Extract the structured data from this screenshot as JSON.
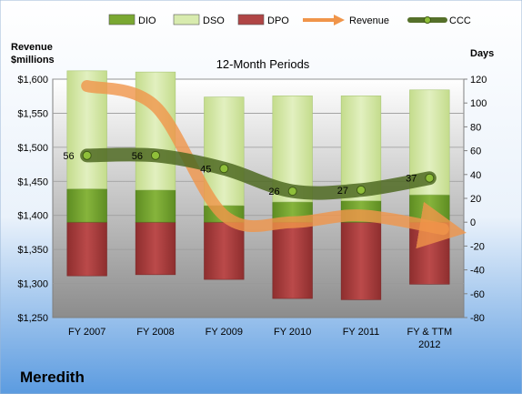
{
  "chart_data": {
    "type": "bar",
    "title": "12-Month Periods",
    "company": "Meredith",
    "categories": [
      "FY 2007",
      "FY 2008",
      "FY 2009",
      "FY 2010",
      "FY 2011",
      "FY & TTM 2012"
    ],
    "left_axis": {
      "label_line1": "Revenue",
      "label_line2": "$millions",
      "min": 1250,
      "max": 1600,
      "ticks": [
        "$1,250",
        "$1,300",
        "$1,350",
        "$1,400",
        "$1,450",
        "$1,500",
        "$1,550",
        "$1,600"
      ],
      "tick_values": [
        1250,
        1300,
        1350,
        1400,
        1450,
        1500,
        1550,
        1600
      ]
    },
    "right_axis": {
      "label": "Days",
      "min": -80,
      "max": 120,
      "ticks": [
        "-80",
        "-60",
        "-40",
        "-20",
        "0",
        "20",
        "40",
        "60",
        "80",
        "100",
        "120"
      ],
      "tick_values": [
        -80,
        -60,
        -40,
        -20,
        0,
        20,
        40,
        60,
        80,
        100,
        120
      ]
    },
    "series": [
      {
        "name": "DIO",
        "axis": "days",
        "values": [
          28,
          27,
          14,
          17,
          18,
          23
        ],
        "color": "#6a9a2a"
      },
      {
        "name": "DSO",
        "axis": "days",
        "values": [
          99,
          99,
          91,
          89,
          88,
          88
        ],
        "color": "#cfe3a0"
      },
      {
        "name": "DPO",
        "axis": "days",
        "values": [
          -45,
          -44,
          -48,
          -64,
          -65,
          -52
        ],
        "color": "#a83c3c"
      },
      {
        "name": "Revenue",
        "axis": "revenue",
        "values": [
          1590,
          1560,
          1400,
          1390,
          1400,
          1380
        ],
        "color": "#f0954a"
      },
      {
        "name": "CCC",
        "axis": "days",
        "values": [
          56,
          56,
          45,
          26,
          27,
          37
        ],
        "color": "#4f6a22"
      }
    ],
    "ccc_labels": [
      "56",
      "56",
      "45",
      "26",
      "27",
      "37"
    ]
  },
  "legend": {
    "placement": "top",
    "items": [
      {
        "name": "DIO",
        "kind": "bar",
        "color": "#7aa832"
      },
      {
        "name": "DSO",
        "kind": "bar",
        "color": "#d8ebae"
      },
      {
        "name": "DPO",
        "kind": "bar",
        "color": "#b04545"
      },
      {
        "name": "Revenue",
        "kind": "arrow",
        "color": "#f0954a"
      },
      {
        "name": "CCC",
        "kind": "line",
        "color": "#55702a"
      }
    ]
  }
}
